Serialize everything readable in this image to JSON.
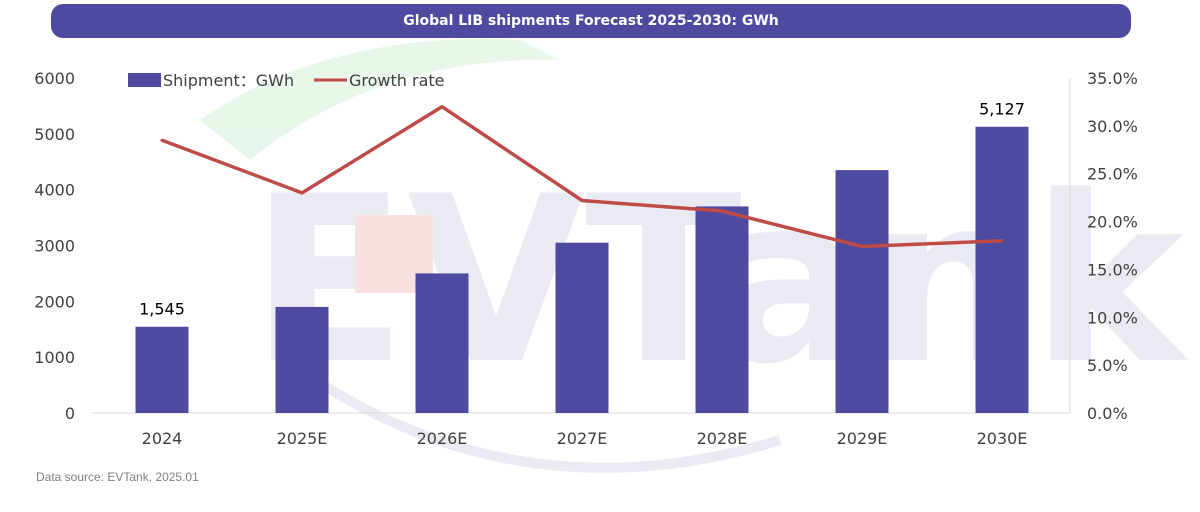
{
  "title": "Global LIB shipments Forecast 2025-2030: GWh",
  "source": "Data source: EVTank, 2025.01",
  "colors": {
    "bar": "#4e4aa0",
    "line": "#be4b48",
    "axis_text": "#404040",
    "title_bg": "#4e4aa0",
    "watermark": "#d9dae9"
  },
  "chart_data": {
    "type": "bar",
    "title": "Global LIB shipments Forecast 2025-2030: GWh",
    "categories": [
      "2024",
      "2025E",
      "2026E",
      "2027E",
      "2028E",
      "2029E",
      "2030E"
    ],
    "series": [
      {
        "name": "Shipment：GWh",
        "type": "bar",
        "axis": "left",
        "values": [
          1545,
          1900,
          2500,
          3050,
          3700,
          4350,
          5127
        ]
      },
      {
        "name": "Growth rate",
        "type": "line",
        "axis": "right",
        "values": [
          0.285,
          0.23,
          0.32,
          0.222,
          0.211,
          0.174,
          0.18
        ]
      }
    ],
    "data_labels": [
      {
        "category": "2024",
        "text": "1,545"
      },
      {
        "category": "2030E",
        "text": "5,127"
      }
    ],
    "y_left": {
      "lim": [
        0,
        6000
      ],
      "ticks": [
        "0",
        "1000",
        "2000",
        "3000",
        "4000",
        "5000",
        "6000"
      ]
    },
    "y_right": {
      "lim": [
        0,
        0.35
      ],
      "ticks": [
        "0.0%",
        "5.0%",
        "10.0%",
        "15.0%",
        "20.0%",
        "25.0%",
        "30.0%",
        "35.0%"
      ]
    },
    "legend_position": "top-left",
    "grid": false
  }
}
